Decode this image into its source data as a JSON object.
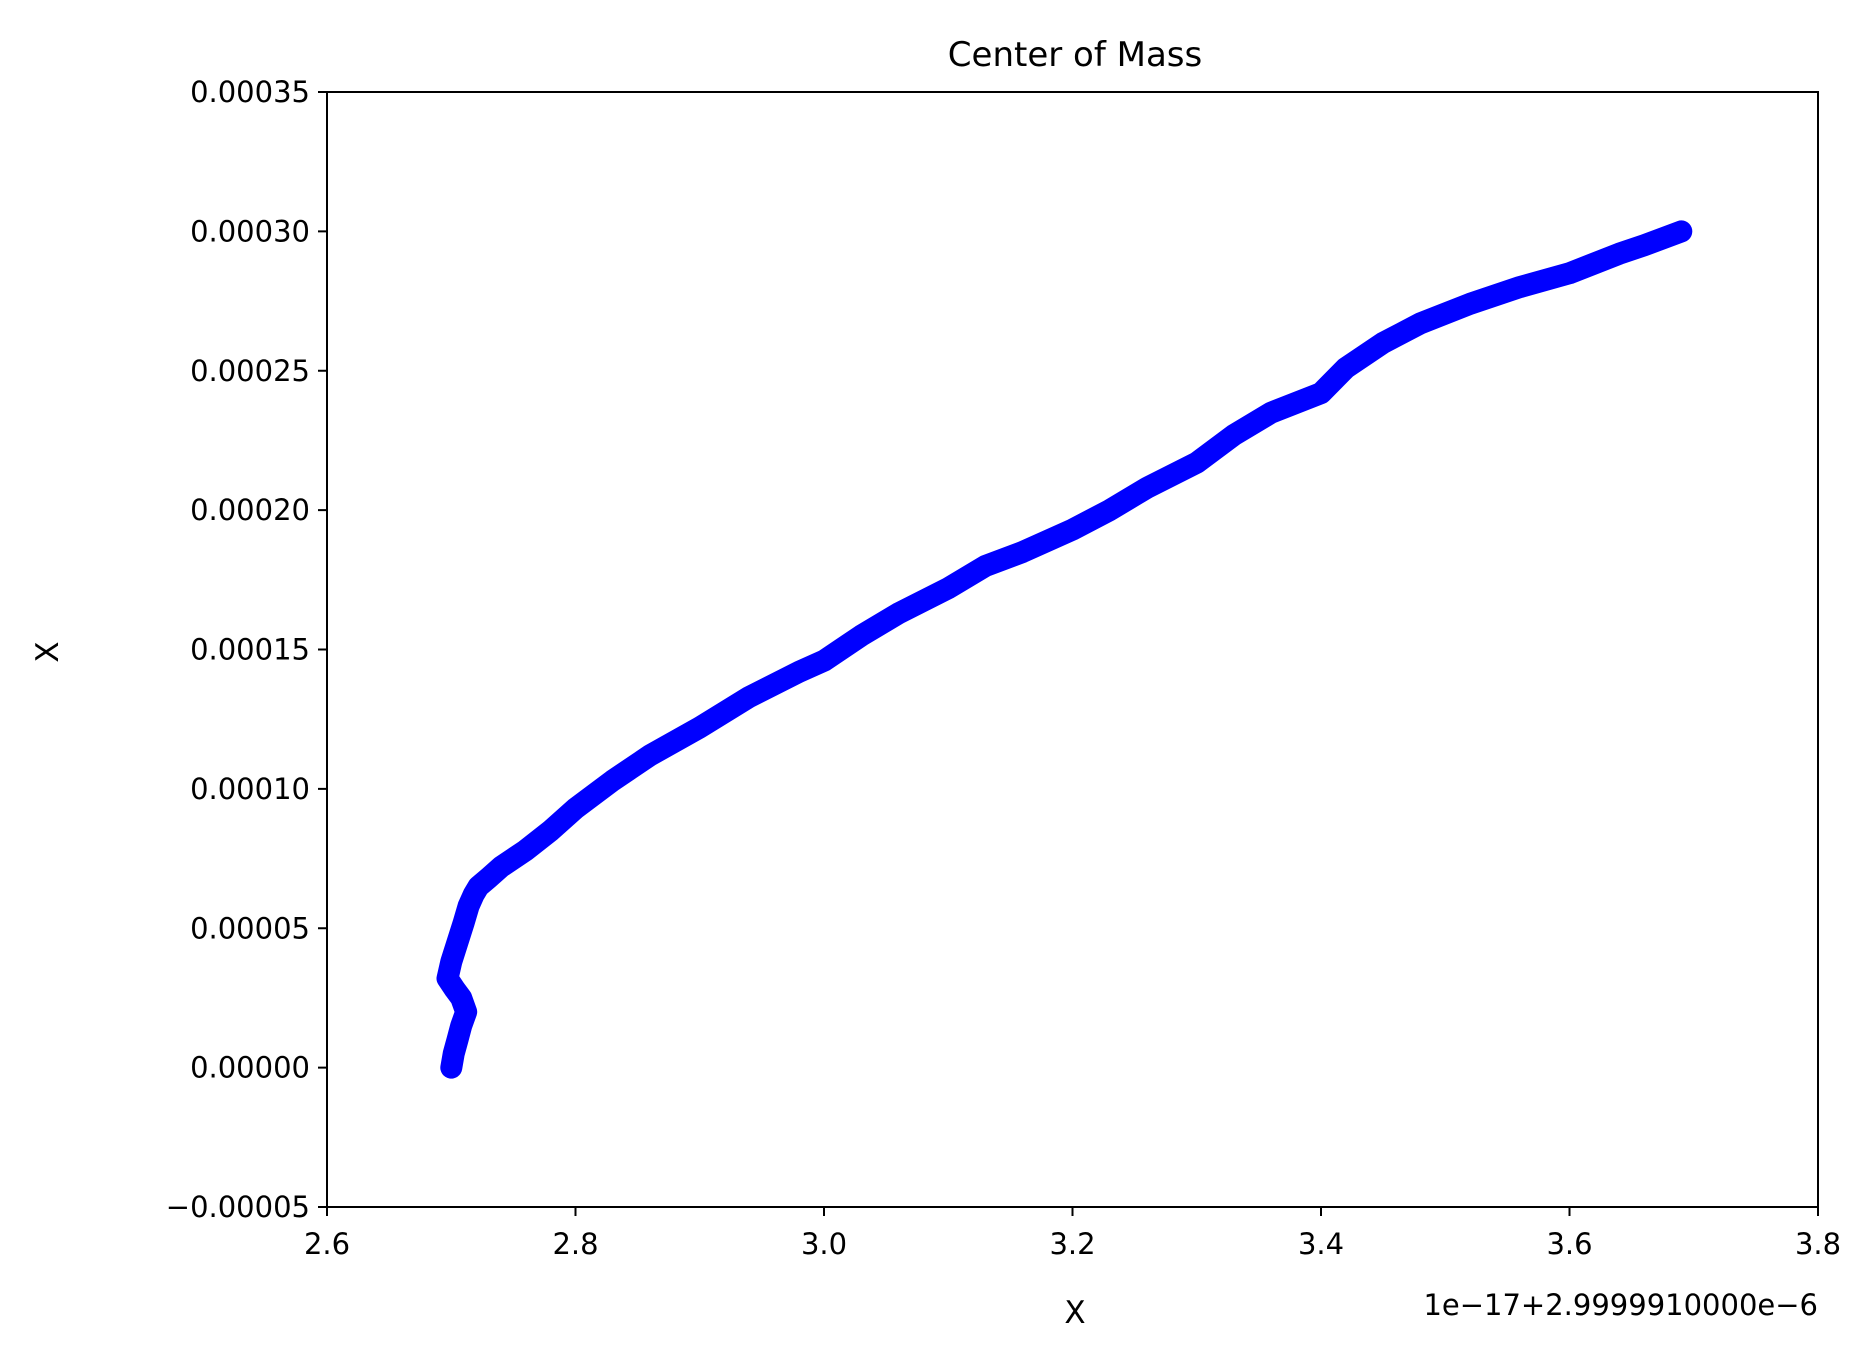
{
  "chart_data": {
    "type": "line",
    "title": "Center of Mass",
    "xlabel": "X",
    "ylabel": "X",
    "x_offset_text": "1e−17+2.9999910000e−6",
    "xlim": [
      2.6,
      3.8
    ],
    "ylim": [
      -5e-05,
      0.00035
    ],
    "x_ticks": [
      2.6,
      2.8,
      3.0,
      3.2,
      3.4,
      3.6,
      3.8
    ],
    "x_tick_labels": [
      "2.6",
      "2.8",
      "3.0",
      "3.2",
      "3.4",
      "3.6",
      "3.8"
    ],
    "y_ticks": [
      -5e-05,
      0.0,
      5e-05,
      0.0001,
      0.00015,
      0.0002,
      0.00025,
      0.0003,
      0.00035
    ],
    "y_tick_labels": [
      "−0.00005",
      "0.00000",
      "0.00005",
      "0.00010",
      "0.00015",
      "0.00020",
      "0.00025",
      "0.00030",
      "0.00035"
    ],
    "grid": false,
    "series": [
      {
        "color": "#0000ff",
        "x": [
          2.7,
          2.702,
          2.705,
          2.708,
          2.712,
          2.708,
          2.703,
          2.697,
          2.7,
          2.705,
          2.71,
          2.714,
          2.718,
          2.722,
          2.73,
          2.74,
          2.76,
          2.78,
          2.8,
          2.83,
          2.86,
          2.9,
          2.94,
          2.98,
          3.0,
          3.03,
          3.06,
          3.1,
          3.13,
          3.16,
          3.2,
          3.23,
          3.26,
          3.3,
          3.33,
          3.36,
          3.4,
          3.42,
          3.45,
          3.48,
          3.52,
          3.56,
          3.6,
          3.64,
          3.66,
          3.69
        ],
        "y": [
          0.0,
          5e-06,
          1e-05,
          1.5e-05,
          2e-05,
          2.5e-05,
          2.8e-05,
          3.2e-05,
          3.8e-05,
          4.5e-05,
          5.2e-05,
          5.8e-05,
          6.2e-05,
          6.5e-05,
          6.8e-05,
          7.2e-05,
          7.8e-05,
          8.5e-05,
          9.3e-05,
          0.000103,
          0.000112,
          0.000122,
          0.000133,
          0.000142,
          0.000146,
          0.000155,
          0.000163,
          0.000172,
          0.00018,
          0.000185,
          0.000193,
          0.0002,
          0.000208,
          0.000217,
          0.000227,
          0.000235,
          0.000242,
          0.000251,
          0.00026,
          0.000267,
          0.000274,
          0.00028,
          0.000285,
          0.000292,
          0.000295,
          0.0003
        ]
      }
    ]
  }
}
